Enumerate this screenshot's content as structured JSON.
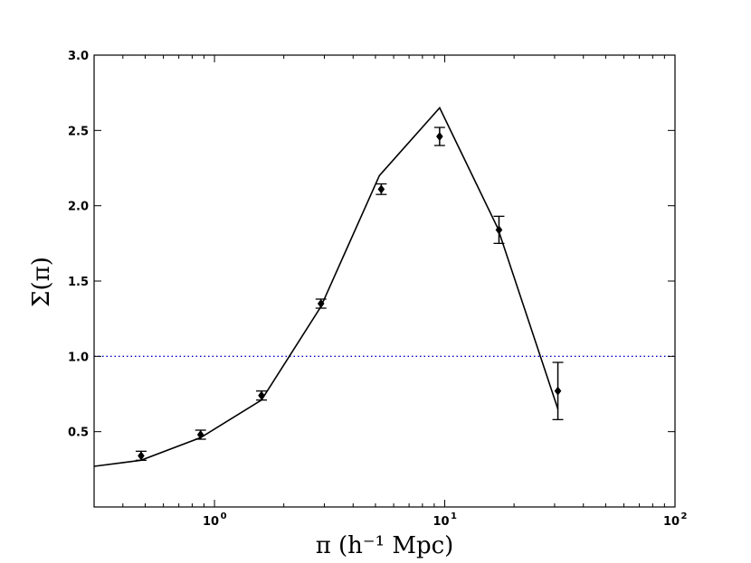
{
  "chart_data": {
    "type": "line",
    "x_scale": "log",
    "xlim": [
      0.3,
      100
    ],
    "ylim": [
      0.0,
      3.0
    ],
    "xlabel": "π  (h⁻¹ Mpc)",
    "ylabel": "Σ(π)",
    "x_tick_labels": [
      {
        "value": 1,
        "base": "10",
        "exp": "0"
      },
      {
        "value": 10,
        "base": "10",
        "exp": "1"
      },
      {
        "value": 100,
        "base": "10",
        "exp": "2"
      }
    ],
    "y_ticks": [
      0.5,
      1.0,
      1.5,
      2.0,
      2.5,
      3.0
    ],
    "y_tick_labels": [
      "0.5",
      "1.0",
      "1.5",
      "2.0",
      "2.5",
      "3.0"
    ],
    "model_line": {
      "x": [
        0.3,
        0.48,
        0.87,
        1.6,
        2.9,
        5.2,
        9.5
      ],
      "y": [
        0.27,
        0.31,
        0.46,
        0.71,
        1.33,
        2.2,
        2.65
      ],
      "x2": [
        9.5,
        17.0,
        31.0
      ],
      "y2": [
        2.65,
        1.85,
        0.65
      ],
      "color": "#000000"
    },
    "points": [
      {
        "x": 0.48,
        "y": 0.34,
        "err": 0.03
      },
      {
        "x": 0.87,
        "y": 0.48,
        "err": 0.03
      },
      {
        "x": 1.6,
        "y": 0.74,
        "err": 0.03
      },
      {
        "x": 2.9,
        "y": 1.35,
        "err": 0.03
      },
      {
        "x": 5.3,
        "y": 2.11,
        "err": 0.035
      },
      {
        "x": 9.5,
        "y": 2.46,
        "err": 0.06
      },
      {
        "x": 17.2,
        "y": 1.84,
        "err": 0.09
      },
      {
        "x": 31.0,
        "y": 0.77,
        "err": 0.19
      }
    ],
    "reference_line": {
      "y": 1.0,
      "color": "#0000cc",
      "style": "dotted"
    },
    "grid": false
  }
}
